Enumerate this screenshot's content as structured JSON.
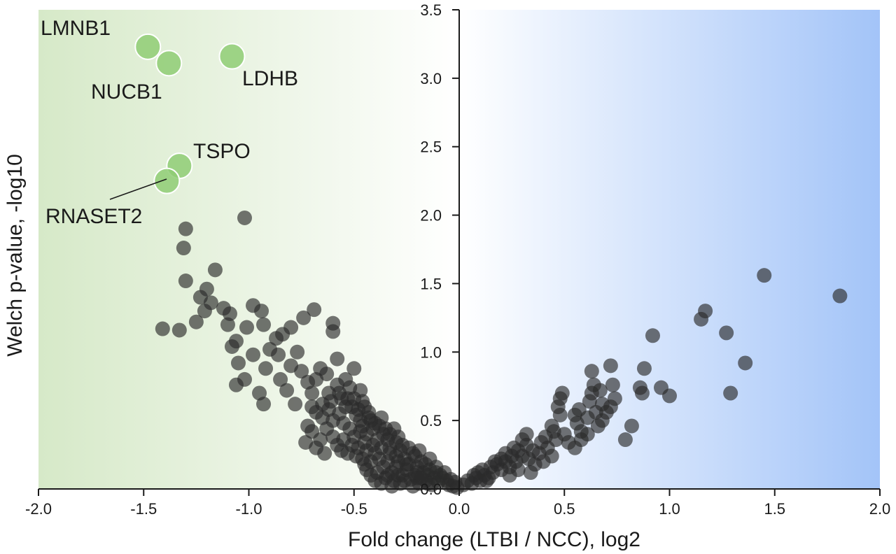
{
  "chart_data": {
    "type": "scatter",
    "title": "",
    "xlabel": "Fold change (LTBI / NCC), log2",
    "ylabel": "Welch p-value, -log10",
    "xlim": [
      -2.0,
      2.0
    ],
    "ylim": [
      0.0,
      3.5
    ],
    "x_ticks": [
      "-2.0",
      "-1.5",
      "-1.0",
      "-0.5",
      "0.0",
      "0.5",
      "1.0",
      "1.5",
      "2.0"
    ],
    "y_ticks": [
      "0.0",
      "0.5",
      "1.0",
      "1.5",
      "2.0",
      "2.5",
      "3.0",
      "3.5"
    ],
    "grid": false,
    "legend": "none",
    "background_gradient": {
      "left": "#d6e9c8",
      "middle": "#ffffff",
      "right": "#a3c4f8"
    },
    "colors": {
      "point": "#2b2b2b",
      "highlight": "#8fcc74",
      "highlight_stroke": "#ffffff"
    },
    "highlighted": [
      {
        "name": "LMNB1",
        "x": -1.48,
        "y": 3.23
      },
      {
        "name": "NUCB1",
        "x": -1.38,
        "y": 3.11
      },
      {
        "name": "LDHB",
        "x": -1.08,
        "y": 3.16
      },
      {
        "name": "TSPO",
        "x": -1.33,
        "y": 2.36
      },
      {
        "name": "RNASET2",
        "x": -1.39,
        "y": 2.25
      }
    ],
    "points": [
      [
        -1.3,
        1.9
      ],
      [
        -1.31,
        1.76
      ],
      [
        -1.02,
        1.98
      ],
      [
        -1.3,
        1.52
      ],
      [
        -1.16,
        1.6
      ],
      [
        -1.2,
        1.46
      ],
      [
        -1.23,
        1.4
      ],
      [
        -1.18,
        1.36
      ],
      [
        -1.41,
        1.17
      ],
      [
        -1.33,
        1.16
      ],
      [
        -1.21,
        1.3
      ],
      [
        -1.12,
        1.32
      ],
      [
        -1.25,
        1.22
      ],
      [
        -1.09,
        1.28
      ],
      [
        -0.98,
        1.34
      ],
      [
        -0.94,
        1.3
      ],
      [
        -1.01,
        1.18
      ],
      [
        -0.93,
        1.2
      ],
      [
        -0.87,
        1.1
      ],
      [
        -0.84,
        1.13
      ],
      [
        -0.8,
        1.18
      ],
      [
        -0.74,
        1.25
      ],
      [
        -0.69,
        1.31
      ],
      [
        -0.6,
        1.21
      ],
      [
        -0.6,
        1.15
      ],
      [
        -1.1,
        1.2
      ],
      [
        -1.06,
        1.08
      ],
      [
        -0.98,
        0.98
      ],
      [
        -1.08,
        1.04
      ],
      [
        -1.05,
        0.92
      ],
      [
        -1.02,
        0.8
      ],
      [
        -1.06,
        0.76
      ],
      [
        -0.9,
        1.02
      ],
      [
        -0.86,
        0.98
      ],
      [
        -0.92,
        0.88
      ],
      [
        -0.95,
        0.7
      ],
      [
        -0.93,
        0.62
      ],
      [
        -0.85,
        0.8
      ],
      [
        -0.8,
        0.9
      ],
      [
        -0.82,
        0.72
      ],
      [
        -0.77,
        1.0
      ],
      [
        -0.75,
        0.86
      ],
      [
        -0.72,
        0.78
      ],
      [
        -0.78,
        0.62
      ],
      [
        -0.7,
        0.7
      ],
      [
        -0.68,
        0.8
      ],
      [
        -0.66,
        0.88
      ],
      [
        -0.63,
        0.84
      ],
      [
        -0.58,
        0.95
      ],
      [
        -0.54,
        0.8
      ],
      [
        -0.52,
        0.74
      ],
      [
        -0.5,
        0.88
      ],
      [
        -0.5,
        0.66
      ],
      [
        -0.47,
        0.72
      ],
      [
        -0.45,
        0.6
      ],
      [
        -0.43,
        0.56
      ],
      [
        -0.42,
        0.5
      ],
      [
        -0.41,
        0.44
      ],
      [
        -0.41,
        0.32
      ],
      [
        -0.38,
        0.46
      ],
      [
        -0.36,
        0.4
      ],
      [
        -0.34,
        0.36
      ],
      [
        -0.33,
        0.3
      ],
      [
        -0.3,
        0.34
      ],
      [
        -0.3,
        0.24
      ],
      [
        -0.28,
        0.28
      ],
      [
        -0.26,
        0.22
      ],
      [
        -0.24,
        0.18
      ],
      [
        -0.22,
        0.26
      ],
      [
        -0.2,
        0.16
      ],
      [
        -0.18,
        0.2
      ],
      [
        -0.17,
        0.12
      ],
      [
        -0.15,
        0.1
      ],
      [
        -0.14,
        0.14
      ],
      [
        -0.12,
        0.08
      ],
      [
        -0.11,
        0.12
      ],
      [
        -0.1,
        0.05
      ],
      [
        -0.08,
        0.08
      ],
      [
        -0.06,
        0.06
      ],
      [
        -0.05,
        0.03
      ],
      [
        -0.03,
        0.02
      ],
      [
        -0.02,
        0.05
      ],
      [
        -0.01,
        0.01
      ],
      [
        -0.65,
        0.62
      ],
      [
        -0.62,
        0.58
      ],
      [
        -0.6,
        0.5
      ],
      [
        -0.57,
        0.55
      ],
      [
        -0.55,
        0.48
      ],
      [
        -0.52,
        0.44
      ],
      [
        -0.5,
        0.38
      ],
      [
        -0.47,
        0.42
      ],
      [
        -0.45,
        0.34
      ],
      [
        -0.44,
        0.28
      ],
      [
        -0.42,
        0.2
      ],
      [
        -0.4,
        0.26
      ],
      [
        -0.38,
        0.22
      ],
      [
        -0.36,
        0.16
      ],
      [
        -0.34,
        0.2
      ],
      [
        -0.32,
        0.12
      ],
      [
        -0.3,
        0.16
      ],
      [
        -0.27,
        0.1
      ],
      [
        -0.25,
        0.14
      ],
      [
        -0.23,
        0.07
      ],
      [
        -0.21,
        0.1
      ],
      [
        -0.19,
        0.04
      ],
      [
        -0.16,
        0.06
      ],
      [
        -0.13,
        0.03
      ],
      [
        -0.72,
        0.46
      ],
      [
        -0.66,
        0.36
      ],
      [
        -0.63,
        0.44
      ],
      [
        -0.58,
        0.32
      ],
      [
        -0.55,
        0.36
      ],
      [
        -0.53,
        0.26
      ],
      [
        -0.48,
        0.3
      ],
      [
        -0.46,
        0.22
      ],
      [
        -0.44,
        0.14
      ],
      [
        -0.39,
        0.12
      ],
      [
        -0.35,
        0.08
      ],
      [
        -0.31,
        0.06
      ],
      [
        -0.28,
        0.04
      ],
      [
        -0.26,
        0.06
      ],
      [
        -0.22,
        0.02
      ],
      [
        -0.2,
        0.08
      ],
      [
        -0.62,
        0.7
      ],
      [
        -0.58,
        0.76
      ],
      [
        -0.56,
        0.66
      ],
      [
        -0.54,
        0.6
      ],
      [
        -0.49,
        0.54
      ],
      [
        -0.47,
        0.5
      ],
      [
        -0.46,
        0.46
      ],
      [
        -0.44,
        0.4
      ],
      [
        -0.39,
        0.36
      ],
      [
        -0.37,
        0.3
      ],
      [
        -0.33,
        0.26
      ],
      [
        -0.29,
        0.2
      ],
      [
        -0.25,
        0.18
      ],
      [
        -0.65,
        0.52
      ],
      [
        -0.68,
        0.56
      ],
      [
        -0.7,
        0.6
      ],
      [
        -0.61,
        0.64
      ],
      [
        -0.57,
        0.7
      ],
      [
        -0.53,
        0.66
      ],
      [
        -0.51,
        0.6
      ],
      [
        -0.48,
        0.58
      ],
      [
        -0.46,
        0.64
      ],
      [
        -0.43,
        0.52
      ],
      [
        -0.4,
        0.48
      ],
      [
        -0.37,
        0.52
      ],
      [
        -0.35,
        0.44
      ],
      [
        -0.33,
        0.4
      ],
      [
        -0.31,
        0.44
      ],
      [
        -0.29,
        0.38
      ],
      [
        -0.27,
        0.32
      ],
      [
        -0.24,
        0.3
      ],
      [
        -0.21,
        0.24
      ],
      [
        -0.19,
        0.28
      ],
      [
        -0.16,
        0.18
      ],
      [
        -0.14,
        0.22
      ],
      [
        -0.11,
        0.16
      ],
      [
        -0.09,
        0.1
      ],
      [
        -0.07,
        0.12
      ],
      [
        -0.04,
        0.07
      ],
      [
        -0.73,
        0.34
      ],
      [
        -0.7,
        0.42
      ],
      [
        -0.68,
        0.3
      ],
      [
        -0.64,
        0.26
      ],
      [
        -0.6,
        0.38
      ],
      [
        -0.56,
        0.28
      ],
      [
        -0.51,
        0.32
      ],
      [
        -0.49,
        0.24
      ],
      [
        -0.45,
        0.18
      ],
      [
        -0.42,
        0.1
      ],
      [
        -0.4,
        0.06
      ],
      [
        -0.37,
        0.04
      ],
      [
        -0.34,
        0.1
      ],
      [
        -0.32,
        0.02
      ],
      [
        -0.29,
        0.1
      ],
      [
        -0.2,
        0.12
      ],
      [
        -0.18,
        0.08
      ],
      [
        -0.15,
        0.04
      ],
      [
        0.02,
        0.03
      ],
      [
        0.04,
        0.06
      ],
      [
        0.06,
        0.04
      ],
      [
        0.08,
        0.08
      ],
      [
        0.1,
        0.06
      ],
      [
        0.12,
        0.1
      ],
      [
        0.14,
        0.08
      ],
      [
        0.16,
        0.12
      ],
      [
        0.18,
        0.18
      ],
      [
        0.2,
        0.14
      ],
      [
        0.22,
        0.2
      ],
      [
        0.24,
        0.16
      ],
      [
        0.25,
        0.24
      ],
      [
        0.27,
        0.2
      ],
      [
        0.28,
        0.28
      ],
      [
        0.3,
        0.24
      ],
      [
        0.32,
        0.32
      ],
      [
        0.33,
        0.22
      ],
      [
        0.35,
        0.28
      ],
      [
        0.36,
        0.18
      ],
      [
        0.38,
        0.26
      ],
      [
        0.3,
        0.36
      ],
      [
        0.32,
        0.4
      ],
      [
        0.26,
        0.3
      ],
      [
        0.22,
        0.26
      ],
      [
        0.2,
        0.22
      ],
      [
        0.17,
        0.2
      ],
      [
        0.15,
        0.16
      ],
      [
        0.11,
        0.14
      ],
      [
        0.09,
        0.12
      ],
      [
        0.07,
        0.1
      ],
      [
        0.13,
        0.06
      ],
      [
        0.24,
        0.1
      ],
      [
        0.28,
        0.14
      ],
      [
        0.34,
        0.12
      ],
      [
        0.4,
        0.2
      ],
      [
        0.42,
        0.3
      ],
      [
        0.44,
        0.24
      ],
      [
        0.46,
        0.36
      ],
      [
        0.45,
        0.42
      ],
      [
        0.48,
        0.54
      ],
      [
        0.47,
        0.6
      ],
      [
        0.48,
        0.66
      ],
      [
        0.49,
        0.7
      ],
      [
        0.44,
        0.46
      ],
      [
        0.41,
        0.38
      ],
      [
        0.39,
        0.34
      ],
      [
        0.5,
        0.4
      ],
      [
        0.52,
        0.34
      ],
      [
        0.55,
        0.54
      ],
      [
        0.57,
        0.58
      ],
      [
        0.56,
        0.48
      ],
      [
        0.58,
        0.42
      ],
      [
        0.61,
        0.52
      ],
      [
        0.62,
        0.64
      ],
      [
        0.63,
        0.7
      ],
      [
        0.64,
        0.76
      ],
      [
        0.63,
        0.86
      ],
      [
        0.67,
        0.72
      ],
      [
        0.68,
        0.62
      ],
      [
        0.68,
        0.5
      ],
      [
        0.7,
        0.56
      ],
      [
        0.72,
        0.9
      ],
      [
        0.73,
        0.76
      ],
      [
        0.74,
        0.66
      ],
      [
        0.72,
        0.6
      ],
      [
        0.65,
        0.56
      ],
      [
        0.66,
        0.46
      ],
      [
        0.61,
        0.4
      ],
      [
        0.58,
        0.36
      ],
      [
        0.55,
        0.3
      ],
      [
        0.79,
        0.36
      ],
      [
        0.82,
        0.46
      ],
      [
        0.86,
        0.74
      ],
      [
        0.87,
        0.7
      ],
      [
        0.88,
        0.88
      ],
      [
        0.92,
        1.12
      ],
      [
        0.96,
        0.74
      ],
      [
        1.0,
        0.68
      ],
      [
        1.15,
        1.24
      ],
      [
        1.17,
        1.3
      ],
      [
        1.27,
        1.14
      ],
      [
        1.29,
        0.7
      ],
      [
        1.36,
        0.92
      ],
      [
        1.45,
        1.56
      ],
      [
        1.81,
        1.41
      ]
    ]
  }
}
